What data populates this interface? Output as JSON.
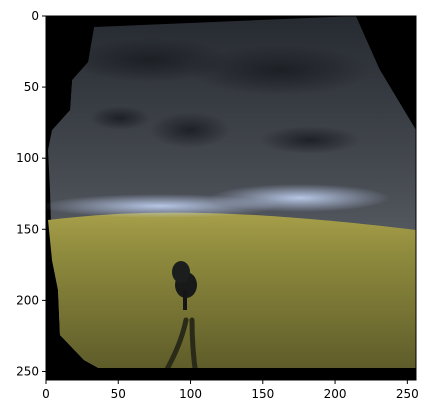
{
  "axes": {
    "x_ticks": [
      "0",
      "50",
      "100",
      "150",
      "200",
      "250"
    ],
    "y_ticks": [
      "0",
      "50",
      "100",
      "150",
      "200",
      "250"
    ],
    "xlim": [
      0,
      256
    ],
    "ylim": [
      256,
      0
    ]
  },
  "image": {
    "subject": "landscape-field-with-tree",
    "colors": {
      "frame_border": "#000000",
      "sky_dark": "#2c3138",
      "sky_mid": "#5a5f66",
      "horizon_blue": "#9ab6e8",
      "field": "#8e8a3d",
      "field_dark": "#5c5a2a",
      "tree": "#1a1c1c",
      "background": "#000000"
    }
  }
}
